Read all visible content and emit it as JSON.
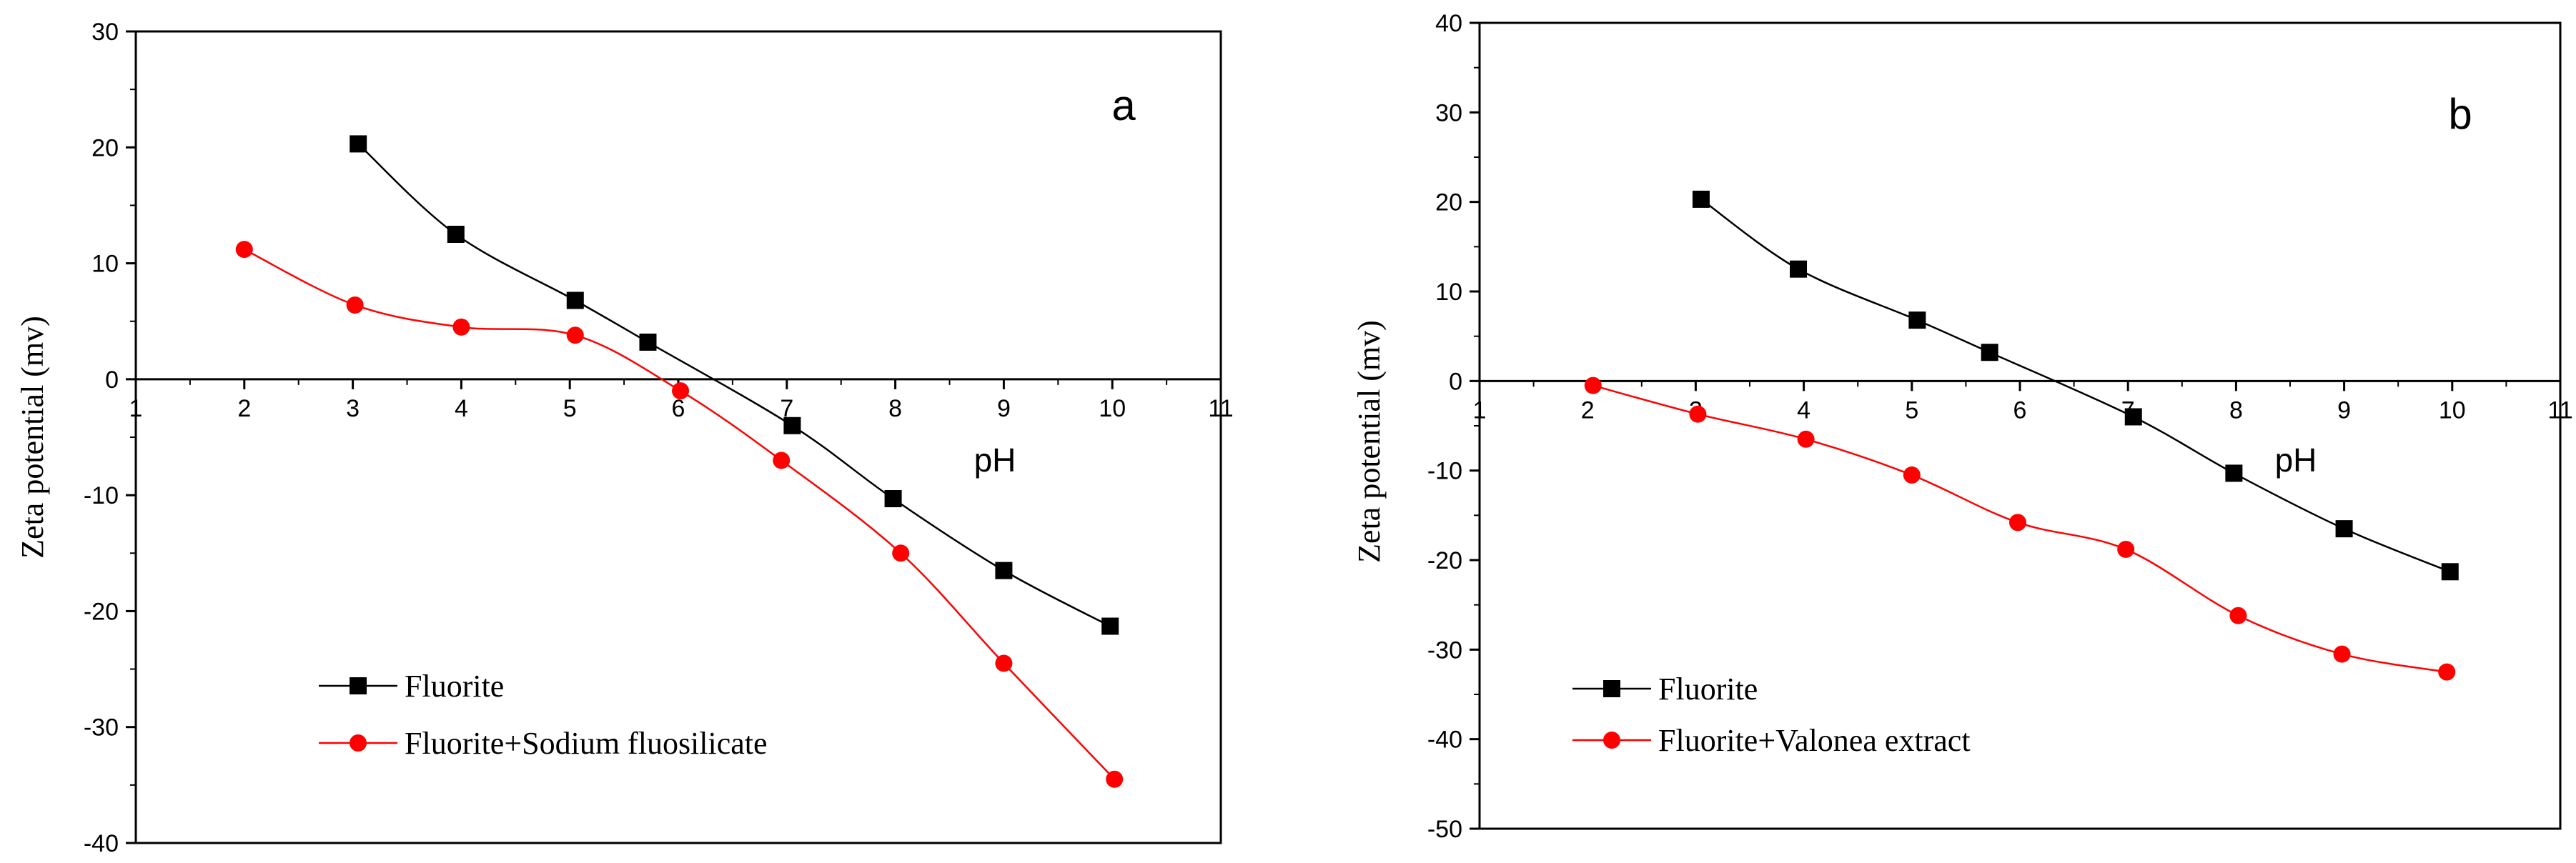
{
  "chart_data": [
    {
      "type": "line",
      "panel_label": "a",
      "xlabel": "pH",
      "ylabel": "Zeta potential (mv)",
      "xlim": [
        1,
        11
      ],
      "ylim": [
        -40,
        30
      ],
      "xticks": [
        1,
        2,
        3,
        4,
        5,
        6,
        7,
        8,
        9,
        10,
        11
      ],
      "yticks": [
        30,
        20,
        10,
        0,
        -10,
        -20,
        -30,
        -40
      ],
      "legend_position": "bottom-left",
      "series": [
        {
          "name": "Fluorite",
          "color": "#000000",
          "marker": "square",
          "x": [
            3.05,
            3.95,
            5.05,
            5.72,
            7.05,
            7.98,
            9.0,
            9.98
          ],
          "y": [
            20.3,
            12.5,
            6.8,
            3.2,
            -4.0,
            -10.3,
            -16.5,
            -21.3
          ]
        },
        {
          "name": "Fluorite+Sodium fluosilicate",
          "color": "#ff0000",
          "marker": "circle",
          "x": [
            2.0,
            3.02,
            4.0,
            5.05,
            6.02,
            6.95,
            8.05,
            9.0,
            10.02
          ],
          "y": [
            11.2,
            6.4,
            4.5,
            3.8,
            -1.0,
            -7.0,
            -15.0,
            -24.5,
            -34.5
          ]
        }
      ]
    },
    {
      "type": "line",
      "panel_label": "b",
      "xlabel": "pH",
      "ylabel": "Zeta potential (mv)",
      "xlim": [
        1,
        11
      ],
      "ylim": [
        -50,
        40
      ],
      "xticks": [
        1,
        2,
        3,
        4,
        5,
        6,
        7,
        8,
        9,
        10,
        11
      ],
      "yticks": [
        40,
        30,
        20,
        10,
        0,
        -10,
        -20,
        -30,
        -40,
        -50
      ],
      "legend_position": "bottom-left",
      "series": [
        {
          "name": "Fluorite",
          "color": "#000000",
          "marker": "square",
          "x": [
            3.05,
            3.95,
            5.05,
            5.72,
            7.05,
            7.98,
            9.0,
            9.98
          ],
          "y": [
            20.3,
            12.5,
            6.8,
            3.2,
            -4.0,
            -10.3,
            -16.5,
            -21.3
          ]
        },
        {
          "name": "Fluorite+Valonea extract",
          "color": "#ff0000",
          "marker": "circle",
          "x": [
            2.05,
            3.02,
            4.02,
            5.0,
            5.98,
            6.98,
            8.02,
            8.98,
            9.95
          ],
          "y": [
            -0.5,
            -3.7,
            -6.5,
            -10.5,
            -15.8,
            -18.8,
            -26.2,
            -30.5,
            -32.5
          ]
        }
      ]
    }
  ]
}
